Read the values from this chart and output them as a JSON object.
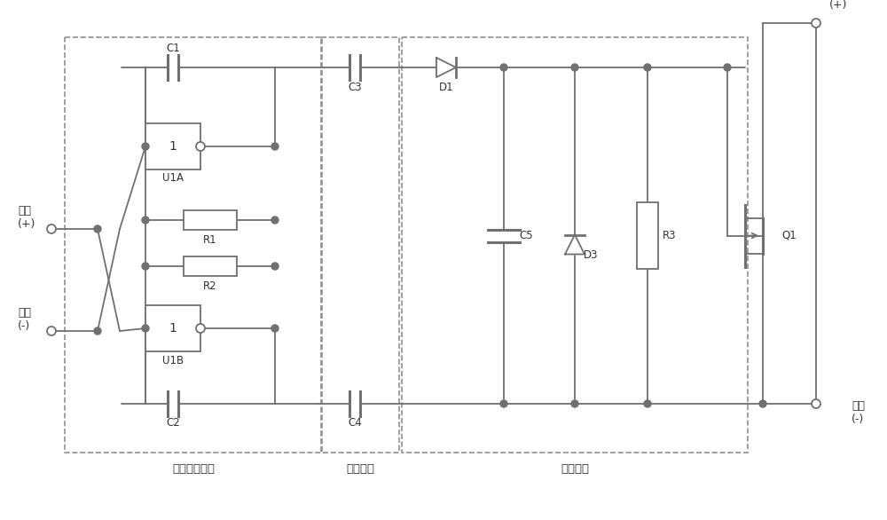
{
  "bg_color": "#ffffff",
  "line_color": "#707070",
  "box1_label": "多谐振荡电路",
  "box2_label": "隔离电容",
  "box3_label": "整流电路",
  "input_plus": "输入\n(+)",
  "input_minus": "输入\n(-)",
  "output_plus": "输出\n(+)",
  "output_minus": "输出\n(-)"
}
